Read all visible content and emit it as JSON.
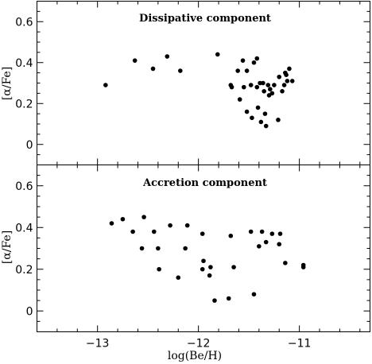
{
  "chart_data": [
    {
      "type": "scatter",
      "title": "Dissipative component",
      "xlabel": "",
      "ylabel": "[α/Fe]",
      "xlim": [
        -13.6,
        -10.3
      ],
      "ylim": [
        -0.1,
        0.7
      ],
      "xticks": [
        -13,
        -12,
        -11
      ],
      "yticks": [
        0,
        0.2,
        0.4,
        0.6
      ],
      "ytick_labels": [
        "0",
        "0.2",
        "0.4",
        "0.6"
      ],
      "grid": false,
      "points": [
        {
          "x": -12.92,
          "y": 0.29
        },
        {
          "x": -12.63,
          "y": 0.41
        },
        {
          "x": -12.45,
          "y": 0.37
        },
        {
          "x": -12.31,
          "y": 0.43
        },
        {
          "x": -12.18,
          "y": 0.36
        },
        {
          "x": -11.81,
          "y": 0.44
        },
        {
          "x": -11.68,
          "y": 0.29
        },
        {
          "x": -11.67,
          "y": 0.28
        },
        {
          "x": -11.61,
          "y": 0.36
        },
        {
          "x": -11.59,
          "y": 0.22
        },
        {
          "x": -11.56,
          "y": 0.41
        },
        {
          "x": -11.55,
          "y": 0.28
        },
        {
          "x": -11.52,
          "y": 0.36
        },
        {
          "x": -11.52,
          "y": 0.16
        },
        {
          "x": -11.48,
          "y": 0.29
        },
        {
          "x": -11.45,
          "y": 0.4
        },
        {
          "x": -11.47,
          "y": 0.13
        },
        {
          "x": -11.42,
          "y": 0.42
        },
        {
          "x": -11.42,
          "y": 0.28
        },
        {
          "x": -11.41,
          "y": 0.18
        },
        {
          "x": -11.39,
          "y": 0.3
        },
        {
          "x": -11.38,
          "y": 0.11
        },
        {
          "x": -11.36,
          "y": 0.3
        },
        {
          "x": -11.35,
          "y": 0.26
        },
        {
          "x": -11.34,
          "y": 0.15
        },
        {
          "x": -11.33,
          "y": 0.09
        },
        {
          "x": -11.31,
          "y": 0.29
        },
        {
          "x": -11.3,
          "y": 0.24
        },
        {
          "x": -11.29,
          "y": 0.27
        },
        {
          "x": -11.27,
          "y": 0.25
        },
        {
          "x": -11.25,
          "y": 0.29
        },
        {
          "x": -11.21,
          "y": 0.12
        },
        {
          "x": -11.2,
          "y": 0.33
        },
        {
          "x": -11.17,
          "y": 0.26
        },
        {
          "x": -11.15,
          "y": 0.29
        },
        {
          "x": -11.14,
          "y": 0.35
        },
        {
          "x": -11.13,
          "y": 0.34
        },
        {
          "x": -11.12,
          "y": 0.31
        },
        {
          "x": -11.1,
          "y": 0.37
        },
        {
          "x": -11.07,
          "y": 0.31
        }
      ]
    },
    {
      "type": "scatter",
      "title": "Accretion component",
      "xlabel": "log(Be/H)",
      "ylabel": "[α/Fe]",
      "xlim": [
        -13.6,
        -10.3
      ],
      "ylim": [
        -0.1,
        0.7
      ],
      "xticks": [
        -13,
        -12,
        -11
      ],
      "xtick_labels": [
        "−13",
        "−12",
        "−11"
      ],
      "yticks": [
        0,
        0.2,
        0.4,
        0.6
      ],
      "ytick_labels": [
        "0",
        "0.2",
        "0.4",
        "0.6"
      ],
      "grid": false,
      "points": [
        {
          "x": -12.86,
          "y": 0.42
        },
        {
          "x": -12.75,
          "y": 0.44
        },
        {
          "x": -12.65,
          "y": 0.38
        },
        {
          "x": -12.56,
          "y": 0.3
        },
        {
          "x": -12.54,
          "y": 0.45
        },
        {
          "x": -12.44,
          "y": 0.38
        },
        {
          "x": -12.4,
          "y": 0.3
        },
        {
          "x": -12.39,
          "y": 0.2
        },
        {
          "x": -12.28,
          "y": 0.41
        },
        {
          "x": -12.2,
          "y": 0.16
        },
        {
          "x": -12.13,
          "y": 0.3
        },
        {
          "x": -12.11,
          "y": 0.41
        },
        {
          "x": -11.96,
          "y": 0.37
        },
        {
          "x": -11.96,
          "y": 0.2
        },
        {
          "x": -11.95,
          "y": 0.24
        },
        {
          "x": -11.89,
          "y": 0.17
        },
        {
          "x": -11.88,
          "y": 0.21
        },
        {
          "x": -11.84,
          "y": 0.05
        },
        {
          "x": -11.7,
          "y": 0.06
        },
        {
          "x": -11.68,
          "y": 0.36
        },
        {
          "x": -11.65,
          "y": 0.21
        },
        {
          "x": -11.48,
          "y": 0.38
        },
        {
          "x": -11.45,
          "y": 0.08
        },
        {
          "x": -11.4,
          "y": 0.31
        },
        {
          "x": -11.37,
          "y": 0.38
        },
        {
          "x": -11.33,
          "y": 0.33
        },
        {
          "x": -11.27,
          "y": 0.37
        },
        {
          "x": -11.2,
          "y": 0.32
        },
        {
          "x": -11.19,
          "y": 0.37
        },
        {
          "x": -11.14,
          "y": 0.23
        },
        {
          "x": -10.96,
          "y": 0.22
        },
        {
          "x": -10.96,
          "y": 0.21
        }
      ]
    }
  ]
}
